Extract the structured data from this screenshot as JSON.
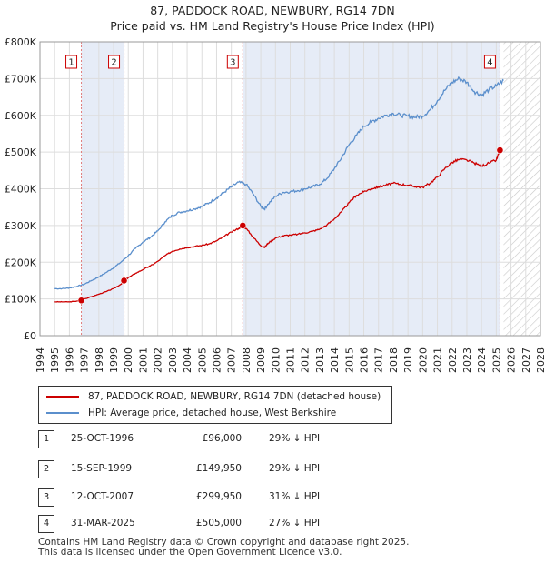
{
  "header": {
    "title": "87, PADDOCK ROAD, NEWBURY, RG14 7DN",
    "subtitle": "Price paid vs. HM Land Registry's House Price Index (HPI)"
  },
  "colors": {
    "property": "#cc0000",
    "hpi": "#5b8fcc",
    "shade": "#e6ecf7",
    "grid": "#dddddd",
    "marker_line": "#e07b7b"
  },
  "chart_data": {
    "type": "line",
    "title": "87, PADDOCK ROAD, NEWBURY, RG14 7DN",
    "subtitle": "Price paid vs. HM Land Registry's House Price Index (HPI)",
    "xlabel": "",
    "ylabel": "",
    "xlim": [
      1994,
      2028
    ],
    "ylim": [
      0,
      800000
    ],
    "x_ticks": [
      1994,
      1995,
      1996,
      1997,
      1998,
      1999,
      2000,
      2001,
      2002,
      2003,
      2004,
      2005,
      2006,
      2007,
      2008,
      2009,
      2010,
      2011,
      2012,
      2013,
      2014,
      2015,
      2016,
      2017,
      2018,
      2019,
      2020,
      2021,
      2022,
      2023,
      2024,
      2025,
      2026,
      2027,
      2028
    ],
    "y_ticks": [
      0,
      100000,
      200000,
      300000,
      400000,
      500000,
      600000,
      700000,
      800000
    ],
    "y_tick_labels": [
      "£0",
      "£100K",
      "£200K",
      "£300K",
      "£400K",
      "£500K",
      "£600K",
      "£700K",
      "£800K"
    ],
    "grid": true,
    "legend_position": "below",
    "data_end": 2025.5,
    "series": [
      {
        "name": "87, PADDOCK ROAD, NEWBURY, RG14 7DN (detached house)",
        "x": [
          1995.0,
          1995.5,
          1996.0,
          1996.5,
          1996.81,
          1997.0,
          1997.5,
          1998.0,
          1998.5,
          1999.0,
          1999.5,
          1999.71,
          2000.0,
          2000.5,
          2001.0,
          2001.5,
          2002.0,
          2002.5,
          2003.0,
          2003.5,
          2004.0,
          2004.5,
          2005.0,
          2005.5,
          2006.0,
          2006.5,
          2007.0,
          2007.5,
          2007.78,
          2008.0,
          2008.5,
          2009.0,
          2009.25,
          2009.5,
          2010.0,
          2010.5,
          2011.0,
          2011.5,
          2012.0,
          2012.5,
          2013.0,
          2013.5,
          2014.0,
          2014.5,
          2015.0,
          2015.5,
          2016.0,
          2016.5,
          2017.0,
          2017.5,
          2018.0,
          2018.5,
          2019.0,
          2019.5,
          2020.0,
          2020.5,
          2021.0,
          2021.5,
          2022.0,
          2022.5,
          2023.0,
          2023.5,
          2024.0,
          2024.5,
          2025.0,
          2025.25
        ],
        "values": [
          92000,
          92000,
          92000,
          94000,
          96000,
          100000,
          106000,
          113000,
          120000,
          128000,
          140000,
          149950,
          158000,
          170000,
          180000,
          190000,
          202000,
          218000,
          230000,
          236000,
          240000,
          243000,
          246000,
          250000,
          258000,
          270000,
          282000,
          292000,
          299950,
          292000,
          268000,
          245000,
          240000,
          252000,
          266000,
          272000,
          274000,
          276000,
          280000,
          284000,
          290000,
          302000,
          318000,
          338000,
          362000,
          382000,
          392000,
          400000,
          405000,
          410000,
          415000,
          412000,
          410000,
          406000,
          404000,
          415000,
          432000,
          455000,
          472000,
          480000,
          478000,
          470000,
          462000,
          470000,
          478000,
          505000
        ]
      },
      {
        "name": "HPI: Average price, detached house, West Berkshire",
        "x": [
          1995.0,
          1995.5,
          1996.0,
          1996.5,
          1997.0,
          1997.5,
          1998.0,
          1998.5,
          1999.0,
          1999.5,
          2000.0,
          2000.5,
          2001.0,
          2001.5,
          2002.0,
          2002.5,
          2003.0,
          2003.5,
          2004.0,
          2004.5,
          2005.0,
          2005.5,
          2006.0,
          2006.5,
          2007.0,
          2007.5,
          2008.0,
          2008.5,
          2009.0,
          2009.25,
          2009.5,
          2010.0,
          2010.5,
          2011.0,
          2011.5,
          2012.0,
          2012.5,
          2013.0,
          2013.5,
          2014.0,
          2014.5,
          2015.0,
          2015.5,
          2016.0,
          2016.5,
          2017.0,
          2017.5,
          2018.0,
          2018.5,
          2019.0,
          2019.5,
          2020.0,
          2020.5,
          2021.0,
          2021.5,
          2022.0,
          2022.5,
          2023.0,
          2023.5,
          2024.0,
          2024.5,
          2025.0,
          2025.5
        ],
        "values": [
          128000,
          128000,
          130000,
          134000,
          140000,
          150000,
          160000,
          172000,
          185000,
          200000,
          218000,
          238000,
          255000,
          268000,
          285000,
          310000,
          328000,
          336000,
          340000,
          345000,
          352000,
          362000,
          375000,
          390000,
          405000,
          418000,
          412000,
          385000,
          352000,
          345000,
          358000,
          380000,
          390000,
          392000,
          395000,
          400000,
          405000,
          412000,
          428000,
          455000,
          485000,
          520000,
          545000,
          570000,
          582000,
          592000,
          600000,
          605000,
          600000,
          598000,
          595000,
          598000,
          615000,
          640000,
          668000,
          690000,
          700000,
          690000,
          665000,
          655000,
          670000,
          680000,
          695000
        ]
      }
    ],
    "hatch_from": 2025.5,
    "sales": [
      {
        "label": "1",
        "x": 1996.81,
        "value": 96000
      },
      {
        "label": "2",
        "x": 1999.71,
        "value": 149950
      },
      {
        "label": "3",
        "x": 2007.78,
        "value": 299950
      },
      {
        "label": "4",
        "x": 2025.25,
        "value": 505000
      }
    ],
    "shaded_spans": [
      [
        1996.81,
        1999.71
      ],
      [
        2007.78,
        2025.25
      ]
    ]
  },
  "legend": {
    "items": [
      {
        "label": "87, PADDOCK ROAD, NEWBURY, RG14 7DN (detached house)"
      },
      {
        "label": "HPI: Average price, detached house, West Berkshire"
      }
    ]
  },
  "transactions": [
    {
      "num": "1",
      "date": "25-OCT-1996",
      "price": "£96,000",
      "hpi": "29% ↓ HPI"
    },
    {
      "num": "2",
      "date": "15-SEP-1999",
      "price": "£149,950",
      "hpi": "29% ↓ HPI"
    },
    {
      "num": "3",
      "date": "12-OCT-2007",
      "price": "£299,950",
      "hpi": "31% ↓ HPI"
    },
    {
      "num": "4",
      "date": "31-MAR-2025",
      "price": "£505,000",
      "hpi": "27% ↓ HPI"
    }
  ],
  "footer": {
    "line1": "Contains HM Land Registry data © Crown copyright and database right 2025.",
    "line2": "This data is licensed under the Open Government Licence v3.0."
  }
}
